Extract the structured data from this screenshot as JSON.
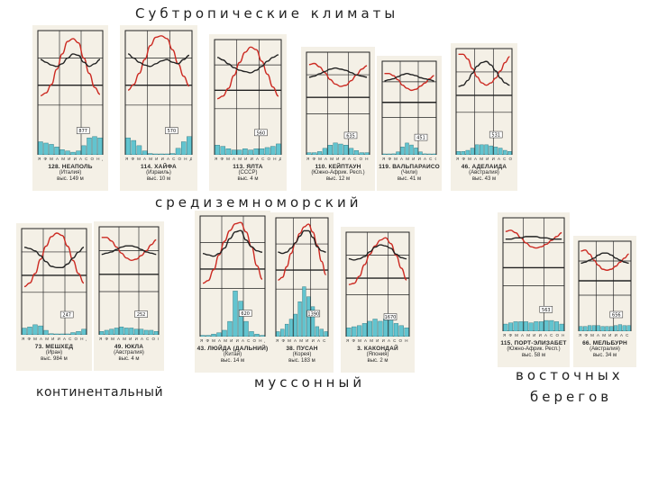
{
  "headings": {
    "top": "Субтропические климаты",
    "mediterranean": "средиземноморский",
    "continental": "континентальный",
    "monsoon": "муссонный",
    "east_line1": "восточных",
    "east_line2": "берегов"
  },
  "colors": {
    "temperature_curve": "#cc2a22",
    "humidity_curve": "#222222",
    "precipitation_bar": "#62c4cf",
    "card_bg": "#f4f0e6"
  },
  "month_letters": "ЯФМАМИИАСОНД",
  "stations": [
    {
      "id": "s1",
      "name": "128. НЕАПОЛЬ",
      "sub": "(Италия)",
      "elev": "выс. 149 м",
      "precip": [
        10,
        9,
        8,
        6,
        4,
        3,
        2,
        3,
        7,
        13,
        14,
        13
      ],
      "temp": [
        10,
        14,
        26,
        48,
        70,
        88,
        92,
        86,
        64,
        42,
        22,
        12
      ],
      "hum": [
        62,
        58,
        54,
        52,
        56,
        64,
        70,
        68,
        58,
        52,
        56,
        62
      ],
      "box": "877"
    },
    {
      "id": "s2",
      "name": "114. ХАЙФА",
      "sub": "(Израиль)",
      "elev": "выс. 10 м",
      "precip": [
        13,
        11,
        7,
        3,
        1,
        0,
        0,
        0,
        1,
        5,
        10,
        14
      ],
      "temp": [
        18,
        26,
        42,
        62,
        82,
        94,
        96,
        92,
        76,
        56,
        38,
        24
      ],
      "hum": [
        70,
        64,
        58,
        54,
        52,
        56,
        60,
        62,
        58,
        56,
        62,
        68
      ],
      "box": "570"
    },
    {
      "id": "s3",
      "name": "113. ЯЛТА",
      "sub": "(СССР)",
      "elev": "выс. 4 м",
      "precip": [
        8,
        7,
        5,
        4,
        4,
        5,
        4,
        5,
        5,
        6,
        7,
        9
      ],
      "temp": [
        12,
        16,
        28,
        48,
        68,
        84,
        92,
        88,
        70,
        50,
        30,
        16
      ],
      "hum": [
        76,
        72,
        66,
        60,
        56,
        54,
        52,
        56,
        62,
        70,
        76,
        80
      ],
      "box": "560"
    },
    {
      "id": "s4",
      "name": "110. КЕЙПТАУН",
      "sub": "(Южно-Африк. Респ.)",
      "elev": "выс. 12 м",
      "precip": [
        2,
        2,
        3,
        6,
        9,
        11,
        10,
        9,
        6,
        4,
        2,
        2
      ],
      "temp": [
        82,
        84,
        78,
        68,
        56,
        48,
        44,
        46,
        54,
        64,
        74,
        80
      ],
      "hum": [
        60,
        62,
        66,
        70,
        74,
        76,
        74,
        72,
        68,
        64,
        62,
        60
      ],
      "box": "635"
    },
    {
      "id": "s5",
      "name": "119. ВАЛЬПАРАИСО",
      "sub": "(Чили)",
      "elev": "выс. 41 м",
      "precip": [
        0,
        0,
        1,
        3,
        8,
        12,
        10,
        7,
        3,
        1,
        0,
        0
      ],
      "temp": [
        80,
        80,
        76,
        68,
        58,
        52,
        48,
        50,
        56,
        62,
        70,
        76
      ],
      "hum": [
        66,
        68,
        70,
        74,
        78,
        80,
        78,
        76,
        72,
        70,
        68,
        66
      ],
      "box": "451"
    },
    {
      "id": "s6",
      "name": "46. АДЕЛАИДА",
      "sub": "(Австралия)",
      "elev": "выс. 43 м",
      "precip": [
        3,
        3,
        4,
        6,
        9,
        9,
        9,
        8,
        7,
        6,
        4,
        3
      ],
      "temp": [
        94,
        94,
        86,
        70,
        56,
        46,
        42,
        46,
        54,
        66,
        80,
        90
      ],
      "hum": [
        40,
        42,
        50,
        62,
        74,
        80,
        82,
        76,
        66,
        54,
        46,
        42
      ],
      "box": "531"
    },
    {
      "id": "s7",
      "name": "73. МЕШХЕД",
      "sub": "(Иран)",
      "elev": "выс. 984 м",
      "precip": [
        6,
        7,
        9,
        8,
        4,
        1,
        0,
        0,
        0,
        2,
        3,
        5
      ],
      "temp": [
        6,
        12,
        28,
        52,
        74,
        90,
        96,
        92,
        74,
        50,
        28,
        12
      ],
      "hum": [
        72,
        70,
        66,
        58,
        48,
        40,
        38,
        38,
        44,
        54,
        64,
        72
      ],
      "box": "247"
    },
    {
      "id": "s8",
      "name": "49. ЮКЛА",
      "sub": "(Австралия)",
      "elev": "выс. 4 м",
      "precip": [
        3,
        4,
        5,
        6,
        7,
        6,
        6,
        5,
        5,
        4,
        4,
        3
      ],
      "temp": [
        86,
        86,
        80,
        70,
        60,
        52,
        48,
        50,
        56,
        64,
        74,
        82
      ],
      "hum": [
        58,
        60,
        62,
        66,
        70,
        72,
        72,
        70,
        66,
        62,
        60,
        58
      ],
      "box": "252"
    },
    {
      "id": "s9",
      "name": "43. ЛЮЙДА (ДАЛЬНИЙ)",
      "sub": "(Китай)",
      "elev": "выс. 14 м",
      "precip": [
        1,
        1,
        2,
        3,
        5,
        12,
        36,
        28,
        12,
        4,
        2,
        1
      ],
      "temp": [
        4,
        8,
        24,
        46,
        66,
        82,
        92,
        94,
        80,
        58,
        30,
        10
      ],
      "hum": [
        48,
        46,
        44,
        48,
        56,
        70,
        80,
        82,
        68,
        58,
        52,
        50
      ],
      "box": "620"
    },
    {
      "id": "s10",
      "name": "38. ПУСАН",
      "sub": "(Корея)",
      "elev": "выс. 183 м",
      "precip": [
        4,
        6,
        10,
        14,
        18,
        28,
        40,
        32,
        24,
        8,
        6,
        4
      ],
      "temp": [
        10,
        14,
        30,
        50,
        66,
        80,
        90,
        94,
        82,
        62,
        38,
        18
      ],
      "hum": [
        52,
        50,
        52,
        58,
        66,
        76,
        84,
        84,
        74,
        60,
        54,
        52
      ],
      "box": "1390"
    },
    {
      "id": "s11",
      "name": "3. КАКОНДАЙ",
      "sub": "(Япония)",
      "elev": "выс. 2 м",
      "precip": [
        8,
        9,
        10,
        12,
        14,
        16,
        14,
        16,
        18,
        12,
        10,
        8
      ],
      "temp": [
        14,
        16,
        28,
        48,
        66,
        80,
        90,
        94,
        84,
        64,
        42,
        22
      ],
      "hum": [
        58,
        56,
        58,
        62,
        70,
        78,
        82,
        80,
        76,
        66,
        60,
        58
      ],
      "box": "1670"
    },
    {
      "id": "s12",
      "name": "115. ПОРТ-ЭЛИЗАБЕТ",
      "sub": "(Южно-Африк. Респ.)",
      "elev": "выс. 58 м",
      "precip": [
        6,
        7,
        8,
        8,
        8,
        7,
        8,
        8,
        9,
        9,
        8,
        6
      ],
      "temp": [
        82,
        84,
        80,
        72,
        64,
        58,
        56,
        58,
        62,
        68,
        74,
        80
      ],
      "hum": [
        70,
        70,
        72,
        72,
        74,
        74,
        74,
        72,
        72,
        70,
        70,
        70
      ],
      "box": "563"
    },
    {
      "id": "s13",
      "name": "66. МЕЛЬБУРН",
      "sub": "(Австралия)",
      "elev": "выс. 34 м",
      "precip": [
        5,
        5,
        6,
        6,
        6,
        5,
        5,
        5,
        6,
        7,
        6,
        6
      ],
      "temp": [
        84,
        86,
        78,
        66,
        56,
        48,
        46,
        48,
        54,
        62,
        70,
        78
      ],
      "hum": [
        60,
        62,
        66,
        70,
        76,
        80,
        80,
        76,
        70,
        66,
        62,
        60
      ],
      "box": "656"
    }
  ]
}
